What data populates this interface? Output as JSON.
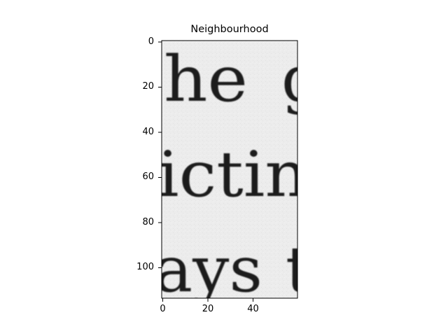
{
  "figure": {
    "title": "Neighbourhood",
    "image_description": "Grayscale scan of serif printed text showing fragments of three lines: 'he g', 'ictin', 'ays t'",
    "image_text_lines": [
      "he",
      "ictin",
      "ays"
    ],
    "y_ticks": [
      "0",
      "20",
      "40",
      "60",
      "80",
      "100"
    ],
    "x_ticks": [
      "0",
      "20",
      "40"
    ],
    "y_range": [
      0,
      114
    ],
    "x_range": [
      0,
      60
    ],
    "colors": {
      "background": "#ebebeb",
      "ink": "#1e1e1e",
      "frame": "#000000"
    }
  }
}
